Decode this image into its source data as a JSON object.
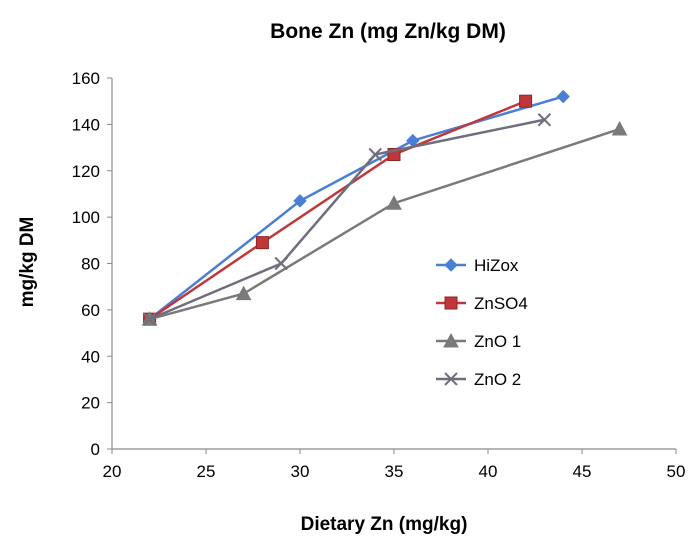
{
  "chart_data": {
    "type": "line",
    "title": "Bone Zn (mg Zn/kg DM)",
    "xlabel": "Dietary Zn (mg/kg)",
    "ylabel": "mg/kg DM",
    "xlim": [
      20,
      50
    ],
    "ylim": [
      0,
      160
    ],
    "x_ticks": [
      "20",
      "25",
      "30",
      "35",
      "40",
      "45",
      "50"
    ],
    "y_ticks": [
      "0",
      "20",
      "40",
      "60",
      "80",
      "100",
      "120",
      "140",
      "160"
    ],
    "grid": false,
    "legend_position": "right",
    "series": [
      {
        "name": "HiZox",
        "color": "#4a7fd4",
        "marker": "diamond",
        "x": [
          22,
          30,
          36,
          44
        ],
        "y": [
          56,
          107,
          133,
          152
        ]
      },
      {
        "name": "ZnSO4",
        "color": "#c0373a",
        "marker": "square",
        "x": [
          22,
          28,
          35,
          42
        ],
        "y": [
          56,
          89,
          127,
          150
        ]
      },
      {
        "name": "ZnO 1",
        "color": "#7a7a7a",
        "marker": "triangle",
        "x": [
          22,
          27,
          35,
          47
        ],
        "y": [
          56,
          67,
          106,
          138
        ]
      },
      {
        "name": "ZnO 2",
        "color": "#6e6e7e",
        "marker": "x",
        "x": [
          22,
          29,
          34,
          43
        ],
        "y": [
          56,
          80,
          127,
          142
        ]
      }
    ]
  }
}
